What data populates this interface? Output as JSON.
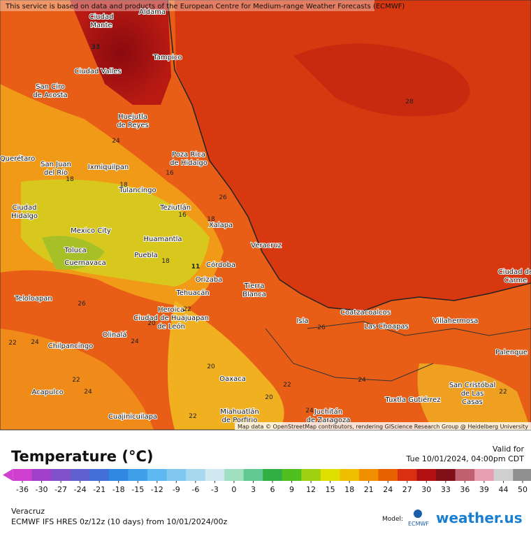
{
  "attribution": "This service is based on data and products of the European Centre for Medium-range Weather Forecasts (ECMWF)",
  "map_credit": "Map data © OpenStreetMap contributors, rendering GIScience Research Group @ Heidelberg University",
  "cities": [
    [
      "Aldama"
    ],
    [
      "Ciudad",
      "Mante"
    ],
    [
      "Tampico"
    ],
    [
      "Ciudad Valles"
    ],
    [
      "San Ciro",
      "de Acosta"
    ],
    [
      "Huejutla",
      "de Reyes"
    ],
    [
      "Poza Rica",
      "de Hidalgo"
    ],
    [
      "Querétaro"
    ],
    [
      "San Juan",
      "del Río"
    ],
    [
      "Ixmiquilpan"
    ],
    [
      "Tulancingo"
    ],
    [
      "Teziutlán"
    ],
    [
      "Ciudad",
      "Hidalgo"
    ],
    [
      "Xalapa"
    ],
    [
      "Mexico City"
    ],
    [
      "Veracruz"
    ],
    [
      "Huamantla"
    ],
    [
      "Toluca"
    ],
    [
      "Puebla"
    ],
    [
      "Cuernavaca"
    ],
    [
      "Córdoba"
    ],
    [
      "Orizaba"
    ],
    [
      "Tierra",
      "Blanca"
    ],
    [
      "Tehuacán"
    ],
    [
      "Teloloapan"
    ],
    [
      "Heroica",
      "Ciudad de Huajuapan",
      "de León"
    ],
    [
      "Coatzacoalcos"
    ],
    [
      "Isla"
    ],
    [
      "Villahermosa"
    ],
    [
      "Las Choapas"
    ],
    [
      "Olinalá"
    ],
    [
      "Ciudad de",
      "Carme"
    ],
    [
      "Chilpancingo"
    ],
    [
      "Palenque"
    ],
    [
      "Oaxaca"
    ],
    [
      "San Cristóbal",
      "de Las",
      "Casas"
    ],
    [
      "Acapulco"
    ],
    [
      "Tuxtla Gutiérrez"
    ],
    [
      "Juchitán",
      "de Zaragoza"
    ],
    [
      "Miahuatlán",
      "de Porfirio"
    ],
    [
      "Cuajinicuilapa"
    ]
  ],
  "temp_labels": [
    33,
    28,
    24,
    16,
    18,
    18,
    26,
    16,
    18,
    18,
    11,
    20,
    22,
    26,
    22,
    24,
    24,
    26,
    20,
    22,
    24,
    24,
    22,
    20,
    22,
    24,
    22
  ],
  "legend": {
    "title": "Temperature (°C)",
    "valid_label": "Valid for",
    "valid_time": "Tue 10/01/2024, 04:00pm CDT",
    "ticks": [
      -36,
      -30,
      -27,
      -24,
      -21,
      -18,
      -15,
      -12,
      -9,
      -6,
      -3,
      0,
      3,
      6,
      9,
      12,
      15,
      18,
      21,
      24,
      27,
      30,
      33,
      36,
      39,
      44,
      50
    ],
    "colors": [
      "#d040d0",
      "#a040c8",
      "#8050c8",
      "#6060d0",
      "#4070d8",
      "#3088e0",
      "#40a0e8",
      "#60b8f0",
      "#80c8f0",
      "#a8d8f0",
      "#d0e8f0",
      "#a0e0c0",
      "#60c890",
      "#30b040",
      "#50c020",
      "#a0d010",
      "#e0e000",
      "#f0c000",
      "#f09000",
      "#e86000",
      "#d83010",
      "#b01010",
      "#801018",
      "#c06070",
      "#e8a0b0",
      "#d0d0d0",
      "#909090"
    ]
  },
  "region": "Veracruz",
  "model_run": "ECMWF IFS HRES 0z/12z (10 days) from 10/01/2024/00z",
  "model_label": "Model:",
  "model_name": "ECMWF",
  "brand": "weather.us"
}
